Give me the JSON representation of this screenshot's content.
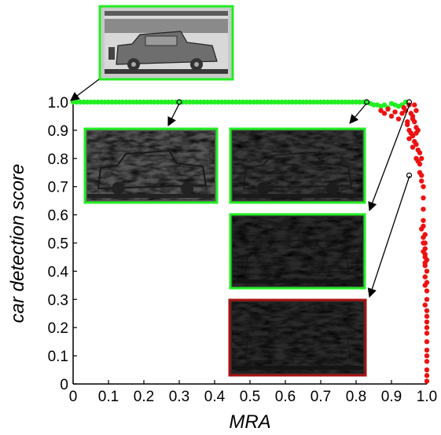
{
  "chart_data": {
    "type": "scatter",
    "xlabel": "MRA",
    "ylabel": "car detection score",
    "xlim": [
      0,
      1.0
    ],
    "ylim": [
      0,
      1.0
    ],
    "x_ticks": [
      "0",
      "0.1",
      "0.2",
      "0.3",
      "0.4",
      "0.5",
      "0.6",
      "0.7",
      "0.8",
      "0.9",
      "1.0"
    ],
    "y_ticks": [
      "0",
      "0.1",
      "0.2",
      "0.3",
      "0.4",
      "0.5",
      "0.6",
      "0.7",
      "0.8",
      "0.9",
      "1.0"
    ],
    "grid": false,
    "colors": {
      "detected": "#22ee22",
      "not_detected": "#ee1111"
    },
    "series": [
      {
        "color": "#22ee22",
        "x": [
          0.0,
          0.01,
          0.02,
          0.03,
          0.04,
          0.05,
          0.06,
          0.07,
          0.08,
          0.09,
          0.1,
          0.11,
          0.12,
          0.13,
          0.14,
          0.15,
          0.16,
          0.17,
          0.18,
          0.19,
          0.2,
          0.21,
          0.22,
          0.23,
          0.24,
          0.25,
          0.26,
          0.27,
          0.28,
          0.29,
          0.3,
          0.31,
          0.32,
          0.33,
          0.34,
          0.35,
          0.36,
          0.37,
          0.38,
          0.39,
          0.4,
          0.41,
          0.42,
          0.43,
          0.44,
          0.45,
          0.46,
          0.47,
          0.48,
          0.49,
          0.5,
          0.51,
          0.52,
          0.53,
          0.54,
          0.55,
          0.56,
          0.57,
          0.58,
          0.59,
          0.6,
          0.61,
          0.62,
          0.63,
          0.64,
          0.65,
          0.66,
          0.67,
          0.68,
          0.69,
          0.7,
          0.71,
          0.72,
          0.73,
          0.74,
          0.75,
          0.76,
          0.77,
          0.78,
          0.79,
          0.8,
          0.81,
          0.82,
          0.83,
          0.84,
          0.85,
          0.86,
          0.87,
          0.88,
          0.89,
          0.9,
          0.91,
          0.92,
          0.93,
          0.94
        ],
        "y": [
          1.0,
          1.0,
          1.0,
          1.0,
          1.0,
          1.0,
          1.0,
          1.0,
          1.0,
          1.0,
          1.0,
          1.0,
          1.0,
          1.0,
          1.0,
          1.0,
          1.0,
          1.0,
          1.0,
          1.0,
          1.0,
          1.0,
          1.0,
          1.0,
          1.0,
          1.0,
          1.0,
          1.0,
          1.0,
          1.0,
          1.0,
          1.0,
          1.0,
          1.0,
          1.0,
          1.0,
          1.0,
          1.0,
          1.0,
          1.0,
          1.0,
          1.0,
          1.0,
          1.0,
          1.0,
          1.0,
          1.0,
          1.0,
          1.0,
          1.0,
          1.0,
          1.0,
          1.0,
          1.0,
          1.0,
          1.0,
          1.0,
          1.0,
          1.0,
          1.0,
          1.0,
          1.0,
          1.0,
          1.0,
          1.0,
          1.0,
          1.0,
          1.0,
          1.0,
          1.0,
          1.0,
          1.0,
          1.0,
          1.0,
          1.0,
          1.0,
          1.0,
          1.0,
          1.0,
          1.0,
          1.0,
          1.0,
          1.0,
          1.0,
          0.995,
          0.99,
          0.99,
          0.985,
          0.99,
          0.98,
          0.995,
          0.99,
          0.985,
          0.99,
          1.0
        ]
      },
      {
        "color": "#ee1111",
        "x": [
          0.87,
          0.88,
          0.89,
          0.9,
          0.91,
          0.92,
          0.93,
          0.935,
          0.94,
          0.945,
          0.95,
          0.955,
          0.96,
          0.965,
          0.97,
          0.945,
          0.95,
          0.955,
          0.96,
          0.965,
          0.97,
          0.95,
          0.96,
          0.965,
          0.97,
          0.975,
          0.96,
          0.97,
          0.975,
          0.98,
          0.97,
          0.975,
          0.98,
          0.985,
          0.98,
          0.985,
          0.99,
          0.985,
          0.99,
          0.99,
          0.99,
          0.985,
          0.99,
          0.995,
          0.99,
          0.995,
          0.99,
          0.995,
          0.995,
          0.99,
          0.995,
          1.0,
          0.995,
          0.995,
          1.0,
          0.995,
          1.0,
          0.995,
          1.0,
          1.0,
          0.995,
          1.0,
          1.0,
          1.0,
          1.0,
          1.0,
          1.0,
          1.0,
          1.0,
          1.0,
          1.0,
          1.0,
          1.0
        ],
        "y": [
          0.97,
          0.96,
          0.975,
          0.95,
          0.965,
          0.94,
          0.96,
          0.98,
          0.97,
          0.93,
          0.99,
          0.96,
          0.95,
          0.99,
          0.97,
          0.92,
          0.9,
          0.89,
          0.94,
          0.93,
          0.91,
          0.87,
          0.88,
          0.86,
          0.89,
          0.9,
          0.84,
          0.85,
          0.83,
          0.82,
          0.8,
          0.79,
          0.78,
          0.8,
          0.75,
          0.74,
          0.7,
          0.72,
          0.66,
          0.62,
          0.58,
          0.55,
          0.56,
          0.53,
          0.52,
          0.5,
          0.5,
          0.48,
          0.46,
          0.47,
          0.45,
          0.44,
          0.43,
          0.42,
          0.4,
          0.38,
          0.36,
          0.35,
          0.33,
          0.3,
          0.28,
          0.26,
          0.24,
          0.22,
          0.2,
          0.18,
          0.15,
          0.12,
          0.1,
          0.08,
          0.05,
          0.03,
          0.01
        ]
      }
    ],
    "highlighted_points": [
      {
        "x": 0.3,
        "y": 1.0
      },
      {
        "x": 0.83,
        "y": 1.0
      },
      {
        "x": 0.95,
        "y": 1.0
      },
      {
        "x": 0.95,
        "y": 0.74
      }
    ],
    "inset_images": [
      {
        "name": "inset-original",
        "border": "#22ee22",
        "points_to": [
          0.0,
          1.0
        ]
      },
      {
        "name": "inset-a",
        "border": "#22ee22",
        "points_to": [
          0.3,
          1.0
        ]
      },
      {
        "name": "inset-b",
        "border": "#22ee22",
        "points_to": [
          0.83,
          1.0
        ]
      },
      {
        "name": "inset-c",
        "border": "#22ee22",
        "points_to": [
          0.95,
          1.0
        ]
      },
      {
        "name": "inset-d",
        "border": "#aa1111",
        "points_to": [
          0.95,
          0.74
        ]
      }
    ]
  }
}
